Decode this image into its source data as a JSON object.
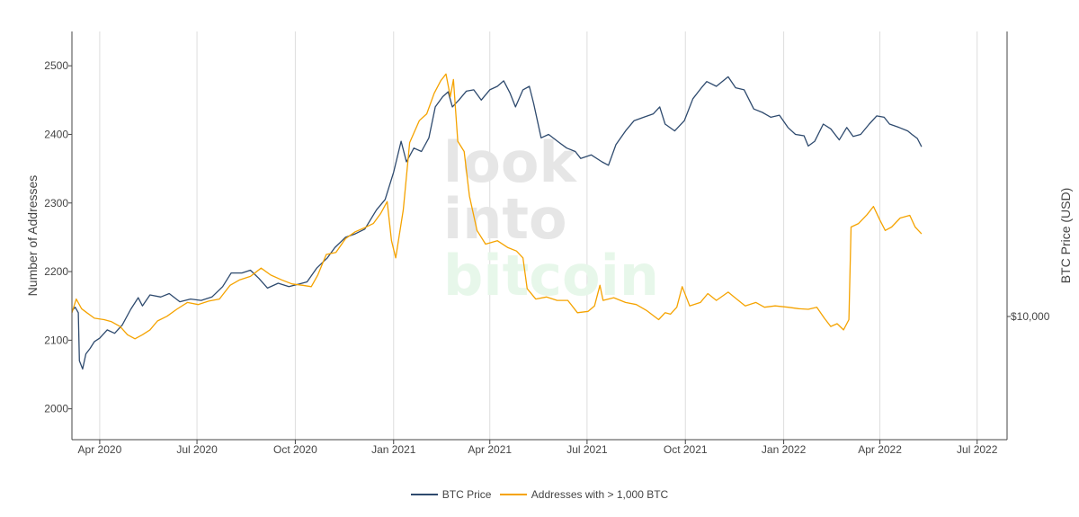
{
  "chart_data": {
    "type": "line",
    "watermark": [
      "look",
      "into",
      "bitcoin"
    ],
    "ylabel": "Number of Addresses",
    "y2label": "BTC Price (USD)",
    "ylim": [
      1955,
      2550
    ],
    "y_ticks": [
      2000,
      2100,
      2200,
      2300,
      2400,
      2500
    ],
    "y2_ticks": [
      {
        "label": "$10,000"
      }
    ],
    "x_range": [
      "2020-03-06",
      "2022-07-29"
    ],
    "x_ticks": [
      {
        "date": "2020-04-01",
        "label": "Apr 2020"
      },
      {
        "date": "2020-07-01",
        "label": "Jul 2020"
      },
      {
        "date": "2020-10-01",
        "label": "Oct 2020"
      },
      {
        "date": "2021-01-01",
        "label": "Jan 2021"
      },
      {
        "date": "2021-04-01",
        "label": "Apr 2021"
      },
      {
        "date": "2021-07-01",
        "label": "Jul 2021"
      },
      {
        "date": "2021-10-01",
        "label": "Oct 2021"
      },
      {
        "date": "2022-01-01",
        "label": "Jan 2022"
      },
      {
        "date": "2022-04-01",
        "label": "Apr 2022"
      },
      {
        "date": "2022-07-01",
        "label": "Jul 2022"
      }
    ],
    "grid": true,
    "legend_position": "bottom",
    "series": [
      {
        "name": "BTC Price",
        "color": "#2e4a6e",
        "axis": "right-log",
        "points": [
          [
            "2020-03-06",
            2143
          ],
          [
            "2020-03-09",
            2148
          ],
          [
            "2020-03-12",
            2140
          ],
          [
            "2020-03-13",
            2070
          ],
          [
            "2020-03-16",
            2058
          ],
          [
            "2020-03-19",
            2080
          ],
          [
            "2020-03-23",
            2088
          ],
          [
            "2020-03-27",
            2098
          ],
          [
            "2020-04-01",
            2103
          ],
          [
            "2020-04-08",
            2115
          ],
          [
            "2020-04-15",
            2110
          ],
          [
            "2020-04-22",
            2122
          ],
          [
            "2020-04-30",
            2145
          ],
          [
            "2020-05-07",
            2162
          ],
          [
            "2020-05-11",
            2150
          ],
          [
            "2020-05-18",
            2166
          ],
          [
            "2020-05-28",
            2163
          ],
          [
            "2020-06-05",
            2168
          ],
          [
            "2020-06-15",
            2156
          ],
          [
            "2020-06-25",
            2160
          ],
          [
            "2020-07-05",
            2158
          ],
          [
            "2020-07-15",
            2163
          ],
          [
            "2020-07-25",
            2178
          ],
          [
            "2020-08-02",
            2198
          ],
          [
            "2020-08-12",
            2198
          ],
          [
            "2020-08-20",
            2202
          ],
          [
            "2020-08-28",
            2190
          ],
          [
            "2020-09-05",
            2176
          ],
          [
            "2020-09-15",
            2183
          ],
          [
            "2020-09-25",
            2178
          ],
          [
            "2020-10-05",
            2182
          ],
          [
            "2020-10-12",
            2185
          ],
          [
            "2020-10-21",
            2205
          ],
          [
            "2020-10-31",
            2220
          ],
          [
            "2020-11-07",
            2235
          ],
          [
            "2020-11-17",
            2250
          ],
          [
            "2020-11-26",
            2255
          ],
          [
            "2020-12-05",
            2262
          ],
          [
            "2020-12-16",
            2290
          ],
          [
            "2020-12-24",
            2305
          ],
          [
            "2021-01-01",
            2345
          ],
          [
            "2021-01-08",
            2390
          ],
          [
            "2021-01-13",
            2360
          ],
          [
            "2021-01-20",
            2380
          ],
          [
            "2021-01-27",
            2375
          ],
          [
            "2021-02-03",
            2395
          ],
          [
            "2021-02-09",
            2440
          ],
          [
            "2021-02-16",
            2455
          ],
          [
            "2021-02-21",
            2462
          ],
          [
            "2021-02-25",
            2440
          ],
          [
            "2021-03-03",
            2450
          ],
          [
            "2021-03-10",
            2463
          ],
          [
            "2021-03-17",
            2465
          ],
          [
            "2021-03-24",
            2450
          ],
          [
            "2021-04-01",
            2465
          ],
          [
            "2021-04-08",
            2470
          ],
          [
            "2021-04-14",
            2478
          ],
          [
            "2021-04-20",
            2460
          ],
          [
            "2021-04-25",
            2440
          ],
          [
            "2021-05-02",
            2465
          ],
          [
            "2021-05-08",
            2470
          ],
          [
            "2021-05-12",
            2445
          ],
          [
            "2021-05-19",
            2395
          ],
          [
            "2021-05-26",
            2400
          ],
          [
            "2021-06-05",
            2388
          ],
          [
            "2021-06-12",
            2380
          ],
          [
            "2021-06-20",
            2375
          ],
          [
            "2021-06-25",
            2365
          ],
          [
            "2021-07-05",
            2370
          ],
          [
            "2021-07-15",
            2360
          ],
          [
            "2021-07-21",
            2355
          ],
          [
            "2021-07-28",
            2385
          ],
          [
            "2021-08-06",
            2405
          ],
          [
            "2021-08-14",
            2420
          ],
          [
            "2021-08-23",
            2425
          ],
          [
            "2021-09-01",
            2430
          ],
          [
            "2021-09-07",
            2440
          ],
          [
            "2021-09-12",
            2415
          ],
          [
            "2021-09-21",
            2405
          ],
          [
            "2021-09-30",
            2420
          ],
          [
            "2021-10-08",
            2452
          ],
          [
            "2021-10-16",
            2468
          ],
          [
            "2021-10-21",
            2477
          ],
          [
            "2021-10-30",
            2470
          ],
          [
            "2021-11-10",
            2484
          ],
          [
            "2021-11-17",
            2468
          ],
          [
            "2021-11-25",
            2465
          ],
          [
            "2021-12-04",
            2437
          ],
          [
            "2021-12-12",
            2432
          ],
          [
            "2021-12-20",
            2425
          ],
          [
            "2021-12-28",
            2428
          ],
          [
            "2022-01-05",
            2410
          ],
          [
            "2022-01-12",
            2400
          ],
          [
            "2022-01-20",
            2398
          ],
          [
            "2022-01-24",
            2383
          ],
          [
            "2022-01-30",
            2390
          ],
          [
            "2022-02-07",
            2415
          ],
          [
            "2022-02-14",
            2408
          ],
          [
            "2022-02-22",
            2392
          ],
          [
            "2022-03-01",
            2410
          ],
          [
            "2022-03-07",
            2397
          ],
          [
            "2022-03-14",
            2400
          ],
          [
            "2022-03-22",
            2415
          ],
          [
            "2022-03-29",
            2427
          ],
          [
            "2022-04-05",
            2425
          ],
          [
            "2022-04-10",
            2415
          ],
          [
            "2022-04-19",
            2410
          ],
          [
            "2022-04-27",
            2405
          ],
          [
            "2022-05-01",
            2400
          ],
          [
            "2022-05-06",
            2394
          ],
          [
            "2022-05-10",
            2382
          ]
        ]
      },
      {
        "name": "Addresses with > 1,000 BTC",
        "color": "#f5a300",
        "axis": "left",
        "points": [
          [
            "2020-03-06",
            2140
          ],
          [
            "2020-03-10",
            2160
          ],
          [
            "2020-03-15",
            2146
          ],
          [
            "2020-03-20",
            2140
          ],
          [
            "2020-03-27",
            2132
          ],
          [
            "2020-04-05",
            2130
          ],
          [
            "2020-04-12",
            2127
          ],
          [
            "2020-04-20",
            2120
          ],
          [
            "2020-04-27",
            2108
          ],
          [
            "2020-05-04",
            2102
          ],
          [
            "2020-05-11",
            2108
          ],
          [
            "2020-05-18",
            2115
          ],
          [
            "2020-05-25",
            2128
          ],
          [
            "2020-06-03",
            2135
          ],
          [
            "2020-06-12",
            2145
          ],
          [
            "2020-06-22",
            2155
          ],
          [
            "2020-07-02",
            2152
          ],
          [
            "2020-07-12",
            2157
          ],
          [
            "2020-07-22",
            2160
          ],
          [
            "2020-08-01",
            2180
          ],
          [
            "2020-08-10",
            2188
          ],
          [
            "2020-08-20",
            2193
          ],
          [
            "2020-08-30",
            2205
          ],
          [
            "2020-09-08",
            2195
          ],
          [
            "2020-09-18",
            2188
          ],
          [
            "2020-09-28",
            2182
          ],
          [
            "2020-10-08",
            2180
          ],
          [
            "2020-10-16",
            2178
          ],
          [
            "2020-10-22",
            2195
          ],
          [
            "2020-10-30",
            2225
          ],
          [
            "2020-11-08",
            2228
          ],
          [
            "2020-11-17",
            2248
          ],
          [
            "2020-11-26",
            2258
          ],
          [
            "2020-12-05",
            2264
          ],
          [
            "2020-12-13",
            2270
          ],
          [
            "2020-12-20",
            2285
          ],
          [
            "2020-12-26",
            2302
          ],
          [
            "2020-12-30",
            2245
          ],
          [
            "2021-01-03",
            2220
          ],
          [
            "2021-01-06",
            2250
          ],
          [
            "2021-01-10",
            2290
          ],
          [
            "2021-01-16",
            2388
          ],
          [
            "2021-01-25",
            2420
          ],
          [
            "2021-02-01",
            2430
          ],
          [
            "2021-02-08",
            2460
          ],
          [
            "2021-02-14",
            2478
          ],
          [
            "2021-02-19",
            2488
          ],
          [
            "2021-02-23",
            2455
          ],
          [
            "2021-02-26",
            2480
          ],
          [
            "2021-03-02",
            2390
          ],
          [
            "2021-03-08",
            2375
          ],
          [
            "2021-03-13",
            2310
          ],
          [
            "2021-03-20",
            2260
          ],
          [
            "2021-03-28",
            2240
          ],
          [
            "2021-04-08",
            2245
          ],
          [
            "2021-04-18",
            2235
          ],
          [
            "2021-04-26",
            2230
          ],
          [
            "2021-05-02",
            2220
          ],
          [
            "2021-05-06",
            2175
          ],
          [
            "2021-05-14",
            2160
          ],
          [
            "2021-05-24",
            2163
          ],
          [
            "2021-06-03",
            2158
          ],
          [
            "2021-06-13",
            2158
          ],
          [
            "2021-06-22",
            2140
          ],
          [
            "2021-07-02",
            2142
          ],
          [
            "2021-07-08",
            2150
          ],
          [
            "2021-07-13",
            2180
          ],
          [
            "2021-07-16",
            2158
          ],
          [
            "2021-07-26",
            2162
          ],
          [
            "2021-08-06",
            2155
          ],
          [
            "2021-08-16",
            2152
          ],
          [
            "2021-08-26",
            2143
          ],
          [
            "2021-09-06",
            2130
          ],
          [
            "2021-09-12",
            2140
          ],
          [
            "2021-09-17",
            2138
          ],
          [
            "2021-09-23",
            2148
          ],
          [
            "2021-09-28",
            2178
          ],
          [
            "2021-10-05",
            2150
          ],
          [
            "2021-10-15",
            2155
          ],
          [
            "2021-10-22",
            2168
          ],
          [
            "2021-10-30",
            2158
          ],
          [
            "2021-11-10",
            2170
          ],
          [
            "2021-11-18",
            2160
          ],
          [
            "2021-11-26",
            2150
          ],
          [
            "2021-12-06",
            2155
          ],
          [
            "2021-12-14",
            2148
          ],
          [
            "2021-12-24",
            2150
          ],
          [
            "2022-01-05",
            2148
          ],
          [
            "2022-01-15",
            2146
          ],
          [
            "2022-01-24",
            2145
          ],
          [
            "2022-02-01",
            2148
          ],
          [
            "2022-02-08",
            2132
          ],
          [
            "2022-02-14",
            2120
          ],
          [
            "2022-02-20",
            2124
          ],
          [
            "2022-02-26",
            2115
          ],
          [
            "2022-03-03",
            2130
          ],
          [
            "2022-03-05",
            2265
          ],
          [
            "2022-03-12",
            2270
          ],
          [
            "2022-03-20",
            2283
          ],
          [
            "2022-03-26",
            2295
          ],
          [
            "2022-04-01",
            2275
          ],
          [
            "2022-04-06",
            2260
          ],
          [
            "2022-04-12",
            2265
          ],
          [
            "2022-04-20",
            2278
          ],
          [
            "2022-04-29",
            2282
          ],
          [
            "2022-05-04",
            2265
          ],
          [
            "2022-05-10",
            2255
          ]
        ]
      }
    ]
  }
}
